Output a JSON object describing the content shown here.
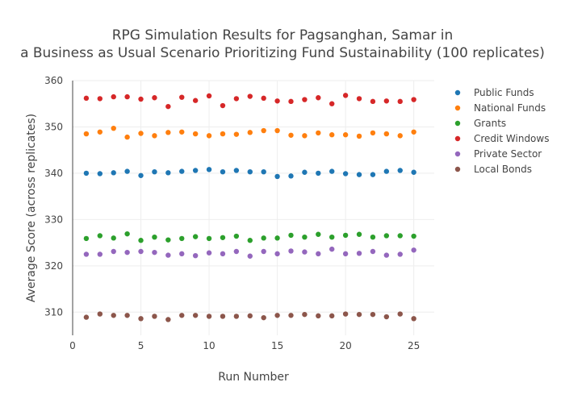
{
  "chart_data": {
    "type": "scatter",
    "title_lines": [
      "RPG Simulation Results for Pagsanghan, Samar in",
      "a Business as Usual Scenario Prioritizing Fund Sustainability (100 replicates)"
    ],
    "xlabel": "Run Number",
    "ylabel": "Average Score (across replicates)",
    "xlim": [
      0,
      26.5
    ],
    "ylim": [
      305,
      360
    ],
    "xticks": [
      0,
      5,
      10,
      15,
      20,
      25
    ],
    "yticks": [
      310,
      320,
      330,
      340,
      350,
      360
    ],
    "grid": true,
    "legend_position": "top-right",
    "x": [
      1,
      2,
      3,
      4,
      5,
      6,
      7,
      8,
      9,
      10,
      11,
      12,
      13,
      14,
      15,
      16,
      17,
      18,
      19,
      20,
      21,
      22,
      23,
      24,
      25
    ],
    "series": [
      {
        "name": "Public Funds",
        "color": "#1f77b4",
        "values": [
          340.0,
          339.9,
          340.1,
          340.4,
          339.5,
          340.3,
          340.1,
          340.4,
          340.6,
          340.8,
          340.3,
          340.6,
          340.3,
          340.3,
          339.3,
          339.4,
          340.2,
          340.0,
          340.4,
          339.9,
          339.7,
          339.7,
          340.4,
          340.6,
          340.2
        ]
      },
      {
        "name": "National Funds",
        "color": "#ff7f0e",
        "values": [
          348.5,
          348.9,
          349.7,
          347.8,
          348.6,
          348.1,
          348.8,
          348.9,
          348.5,
          348.1,
          348.5,
          348.4,
          348.8,
          349.2,
          349.2,
          348.2,
          348.1,
          348.7,
          348.3,
          348.3,
          348.0,
          348.7,
          348.5,
          348.1,
          348.9
        ]
      },
      {
        "name": "Grants",
        "color": "#2ca02c",
        "values": [
          325.9,
          326.5,
          326.0,
          326.9,
          325.5,
          326.2,
          325.6,
          325.9,
          326.3,
          325.9,
          326.1,
          326.4,
          325.5,
          326.0,
          326.0,
          326.6,
          326.2,
          326.8,
          326.2,
          326.6,
          326.8,
          326.2,
          326.5,
          326.5,
          326.4
        ]
      },
      {
        "name": "Credit Windows",
        "color": "#d62728",
        "values": [
          356.2,
          356.1,
          356.5,
          356.5,
          356.0,
          356.3,
          354.4,
          356.4,
          355.7,
          356.7,
          354.6,
          356.1,
          356.6,
          356.2,
          355.6,
          355.5,
          355.9,
          356.3,
          355.0,
          356.8,
          356.1,
          355.5,
          355.6,
          355.5,
          355.9
        ]
      },
      {
        "name": "Private Sector",
        "color": "#9467bd",
        "values": [
          322.5,
          322.5,
          323.1,
          322.9,
          323.1,
          322.9,
          322.3,
          322.6,
          322.2,
          322.8,
          322.6,
          323.1,
          322.1,
          323.1,
          322.6,
          323.2,
          323.0,
          322.6,
          323.6,
          322.6,
          322.7,
          323.1,
          322.3,
          322.5,
          323.4
        ]
      },
      {
        "name": "Local Bonds",
        "color": "#8c564b",
        "values": [
          308.9,
          309.6,
          309.3,
          309.3,
          308.6,
          309.1,
          308.4,
          309.3,
          309.3,
          309.1,
          309.1,
          309.1,
          309.2,
          308.8,
          309.3,
          309.3,
          309.5,
          309.2,
          309.2,
          309.6,
          309.5,
          309.5,
          309.0,
          309.6,
          308.6
        ]
      }
    ]
  }
}
